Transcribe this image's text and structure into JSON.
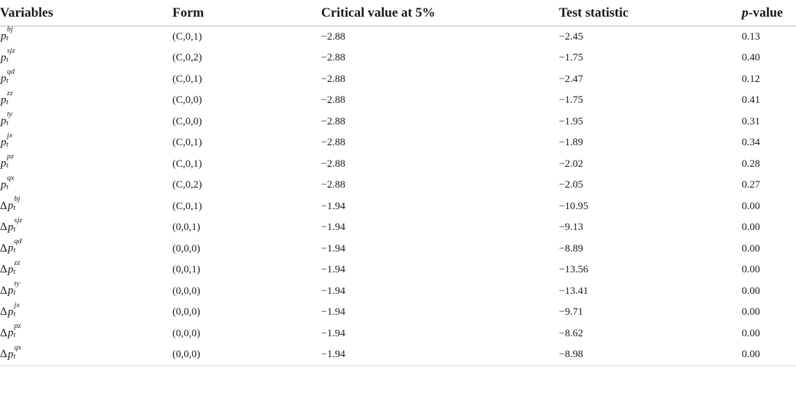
{
  "table": {
    "headers": {
      "variables": "Variables",
      "form": "Form",
      "critical": "Critical value at 5%",
      "statistic": "Test statistic",
      "pvalue_italic": "p",
      "pvalue_rest": "-value"
    },
    "rows": [
      {
        "delta": "",
        "base": "p",
        "sub": "t",
        "sup": "bj",
        "form": "(C,0,1)",
        "critical": "−2.88",
        "statistic": "−2.45",
        "pvalue": "0.13"
      },
      {
        "delta": "",
        "base": "p",
        "sub": "t",
        "sup": "sjz",
        "form": "(C,0,2)",
        "critical": "−2.88",
        "statistic": "−1.75",
        "pvalue": "0.40"
      },
      {
        "delta": "",
        "base": "p",
        "sub": "t",
        "sup": "qd",
        "form": "(C,0,1)",
        "critical": "−2.88",
        "statistic": "−2.47",
        "pvalue": "0.12"
      },
      {
        "delta": "",
        "base": "p",
        "sub": "t",
        "sup": "zz",
        "form": "(C,0,0)",
        "critical": "−2.88",
        "statistic": "−1.75",
        "pvalue": "0.41"
      },
      {
        "delta": "",
        "base": "p",
        "sub": "t",
        "sup": "ty",
        "form": "(C,0,0)",
        "critical": "−2.88",
        "statistic": "−1.95",
        "pvalue": "0.31"
      },
      {
        "delta": "",
        "base": "p",
        "sub": "t",
        "sup": "jx",
        "form": "(C,0,1)",
        "critical": "−2.88",
        "statistic": "−1.89",
        "pvalue": "0.34"
      },
      {
        "delta": "",
        "base": "p",
        "sub": "t",
        "sup": "pz",
        "form": "(C,0,1)",
        "critical": "−2.88",
        "statistic": "−2.02",
        "pvalue": "0.28"
      },
      {
        "delta": "",
        "base": "p",
        "sub": "t",
        "sup": "qx",
        "form": "(C,0,2)",
        "critical": "−2.88",
        "statistic": "−2.05",
        "pvalue": "0.27"
      },
      {
        "delta": "Δ",
        "base": "p",
        "sub": "t",
        "sup": "bj",
        "form": "(C,0,1)",
        "critical": "−1.94",
        "statistic": "−10.95",
        "pvalue": "0.00"
      },
      {
        "delta": "Δ",
        "base": "p",
        "sub": "t",
        "sup": "sjz",
        "form": "(0,0,1)",
        "critical": "−1.94",
        "statistic": "−9.13",
        "pvalue": "0.00"
      },
      {
        "delta": "Δ",
        "base": "p",
        "sub": "t",
        "sup": "qd",
        "form": "(0,0,0)",
        "critical": "−1.94",
        "statistic": "−8.89",
        "pvalue": "0.00"
      },
      {
        "delta": "Δ",
        "base": "p",
        "sub": "t",
        "sup": "zz",
        "form": "(0,0,1)",
        "critical": "−1.94",
        "statistic": "−13.56",
        "pvalue": "0.00"
      },
      {
        "delta": "Δ",
        "base": "p",
        "sub": "t",
        "sup": "ty",
        "form": "(0,0,0)",
        "critical": "−1.94",
        "statistic": "−13.41",
        "pvalue": "0.00"
      },
      {
        "delta": "Δ",
        "base": "p",
        "sub": "t",
        "sup": "jx",
        "form": "(0,0,0)",
        "critical": "−1.94",
        "statistic": "−9.71",
        "pvalue": "0.00"
      },
      {
        "delta": "Δ",
        "base": "p",
        "sub": "t",
        "sup": "pz",
        "form": "(0,0,0)",
        "critical": "−1.94",
        "statistic": "−8.62",
        "pvalue": "0.00"
      },
      {
        "delta": "Δ",
        "base": "p",
        "sub": "t",
        "sup": "qx",
        "form": "(0,0,0)",
        "critical": "−1.94",
        "statistic": "−8.98",
        "pvalue": "0.00"
      }
    ]
  }
}
